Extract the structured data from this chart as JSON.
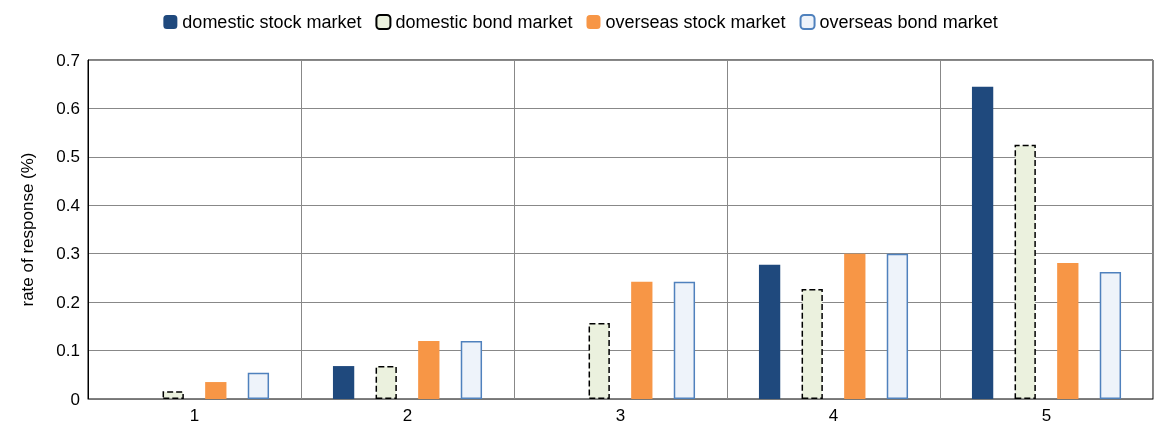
{
  "chart_data": {
    "type": "bar",
    "ylabel": "rate of response (%)",
    "categories": [
      "1",
      "2",
      "3",
      "4",
      "5"
    ],
    "series": [
      {
        "name": "domestic stock market",
        "color": "#1f497d",
        "values": [
          0,
          0.068,
          0,
          0.277,
          0.645
        ]
      },
      {
        "name": "domestic bond market",
        "color": "#ebf1de",
        "line_style": "dashed",
        "values": [
          0.016,
          0.068,
          0.157,
          0.227,
          0.525
        ]
      },
      {
        "name": "overseas stock market",
        "color": "#f79646",
        "values": [
          0.035,
          0.12,
          0.242,
          0.3,
          0.281
        ]
      },
      {
        "name": "overseas bond market",
        "color": "#eef3fa",
        "line_style": "solid",
        "values": [
          0.054,
          0.12,
          0.242,
          0.3,
          0.262
        ]
      }
    ],
    "ylim": [
      0,
      0.7
    ],
    "yticks": [
      0,
      0.1,
      0.2,
      0.3,
      0.4,
      0.5,
      0.6,
      0.7
    ],
    "grid": true,
    "legend": "top"
  }
}
